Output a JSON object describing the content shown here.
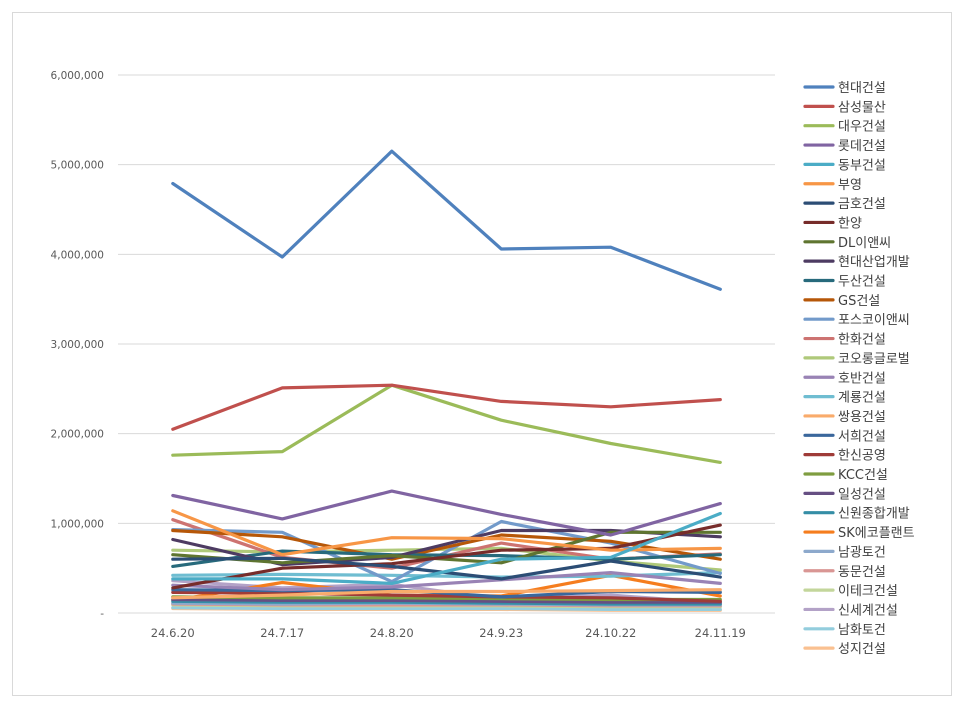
{
  "chart_data": {
    "type": "line",
    "title": "",
    "xlabel": "",
    "ylabel": "",
    "categories": [
      "24.6.20",
      "24.7.17",
      "24.8.20",
      "24.9.23",
      "24.10.22",
      "24.11.19"
    ],
    "ylim": [
      0,
      6000000
    ],
    "yticks": [
      0,
      1000000,
      2000000,
      3000000,
      4000000,
      5000000,
      6000000
    ],
    "ytick_labels": [
      "-",
      "1,000,000",
      "2,000,000",
      "3,000,000",
      "4,000,000",
      "5,000,000",
      "6,000,000"
    ],
    "grid": true,
    "legend": "right",
    "series": [
      {
        "name": "현대건설",
        "color": "#4f81bd",
        "values": [
          4790000,
          3970000,
          5150000,
          4060000,
          4080000,
          3610000
        ]
      },
      {
        "name": "삼성물산",
        "color": "#c0504d",
        "values": [
          2050000,
          2510000,
          2540000,
          2360000,
          2300000,
          2380000
        ]
      },
      {
        "name": "대우건설",
        "color": "#9bbb59",
        "values": [
          1760000,
          1800000,
          2540000,
          2150000,
          1890000,
          1680000
        ]
      },
      {
        "name": "롯데건설",
        "color": "#8064a2",
        "values": [
          1310000,
          1050000,
          1360000,
          1100000,
          870000,
          1220000
        ]
      },
      {
        "name": "동부건설",
        "color": "#4bacc6",
        "values": [
          380000,
          380000,
          330000,
          600000,
          620000,
          1110000
        ]
      },
      {
        "name": "부영",
        "color": "#f79646",
        "values": [
          1140000,
          650000,
          840000,
          830000,
          700000,
          720000
        ]
      },
      {
        "name": "금호건설",
        "color": "#2c4d75",
        "values": [
          600000,
          610000,
          520000,
          380000,
          580000,
          400000
        ]
      },
      {
        "name": "한양",
        "color": "#772c2a",
        "values": [
          280000,
          500000,
          550000,
          700000,
          720000,
          980000
        ]
      },
      {
        "name": "DL이앤씨",
        "color": "#5f7530",
        "values": [
          650000,
          560000,
          640000,
          560000,
          900000,
          900000
        ]
      },
      {
        "name": "현대산업개발",
        "color": "#4d3b62",
        "values": [
          820000,
          540000,
          620000,
          920000,
          920000,
          850000
        ]
      },
      {
        "name": "두산건설",
        "color": "#276a7c",
        "values": [
          520000,
          690000,
          650000,
          640000,
          600000,
          650000
        ]
      },
      {
        "name": "GS건설",
        "color": "#b65708",
        "values": [
          920000,
          850000,
          600000,
          870000,
          800000,
          600000
        ]
      },
      {
        "name": "포스코이앤씨",
        "color": "#729aca",
        "values": [
          930000,
          900000,
          350000,
          1020000,
          780000,
          440000
        ]
      },
      {
        "name": "한화건설",
        "color": "#cd7371",
        "values": [
          1040000,
          620000,
          500000,
          780000,
          600000,
          660000
        ]
      },
      {
        "name": "코오롱글로벌",
        "color": "#afc97a",
        "values": [
          700000,
          680000,
          700000,
          720000,
          580000,
          480000
        ]
      },
      {
        "name": "호반건설",
        "color": "#9983b5",
        "values": [
          310000,
          260000,
          290000,
          370000,
          450000,
          330000
        ]
      },
      {
        "name": "계룡건설",
        "color": "#6fbdd1",
        "values": [
          420000,
          430000,
          420000,
          400000,
          410000,
          450000
        ]
      },
      {
        "name": "쌍용건설",
        "color": "#f9ab6b",
        "values": [
          170000,
          200000,
          240000,
          240000,
          250000,
          260000
        ]
      },
      {
        "name": "서희건설",
        "color": "#3a679c",
        "values": [
          260000,
          250000,
          260000,
          180000,
          240000,
          230000
        ]
      },
      {
        "name": "한신공영",
        "color": "#9f3b38",
        "values": [
          230000,
          220000,
          200000,
          180000,
          170000,
          130000
        ]
      },
      {
        "name": "KCC건설",
        "color": "#7f9d40",
        "values": [
          180000,
          170000,
          170000,
          160000,
          150000,
          150000
        ]
      },
      {
        "name": "일성건설",
        "color": "#664f83",
        "values": [
          150000,
          140000,
          140000,
          130000,
          120000,
          120000
        ]
      },
      {
        "name": "신원종합개발",
        "color": "#358ea6",
        "values": [
          130000,
          120000,
          120000,
          110000,
          100000,
          100000
        ]
      },
      {
        "name": "SK에코플랜트",
        "color": "#f57d1e",
        "values": [
          140000,
          340000,
          200000,
          190000,
          420000,
          190000
        ]
      },
      {
        "name": "남광토건",
        "color": "#8da9cc",
        "values": [
          110000,
          100000,
          110000,
          100000,
          90000,
          90000
        ]
      },
      {
        "name": "동문건설",
        "color": "#d99694",
        "values": [
          100000,
          90000,
          90000,
          90000,
          80000,
          80000
        ]
      },
      {
        "name": "이테크건설",
        "color": "#c3d69b",
        "values": [
          90000,
          80000,
          80000,
          80000,
          70000,
          70000
        ]
      },
      {
        "name": "신세계건설",
        "color": "#b3a2c7",
        "values": [
          360000,
          280000,
          320000,
          150000,
          200000,
          110000
        ]
      },
      {
        "name": "남화토건",
        "color": "#93cddd",
        "values": [
          60000,
          50000,
          50000,
          50000,
          40000,
          40000
        ]
      },
      {
        "name": "성지건설",
        "color": "#fac090",
        "values": [
          50000,
          40000,
          40000,
          40000,
          30000,
          30000
        ]
      }
    ]
  }
}
